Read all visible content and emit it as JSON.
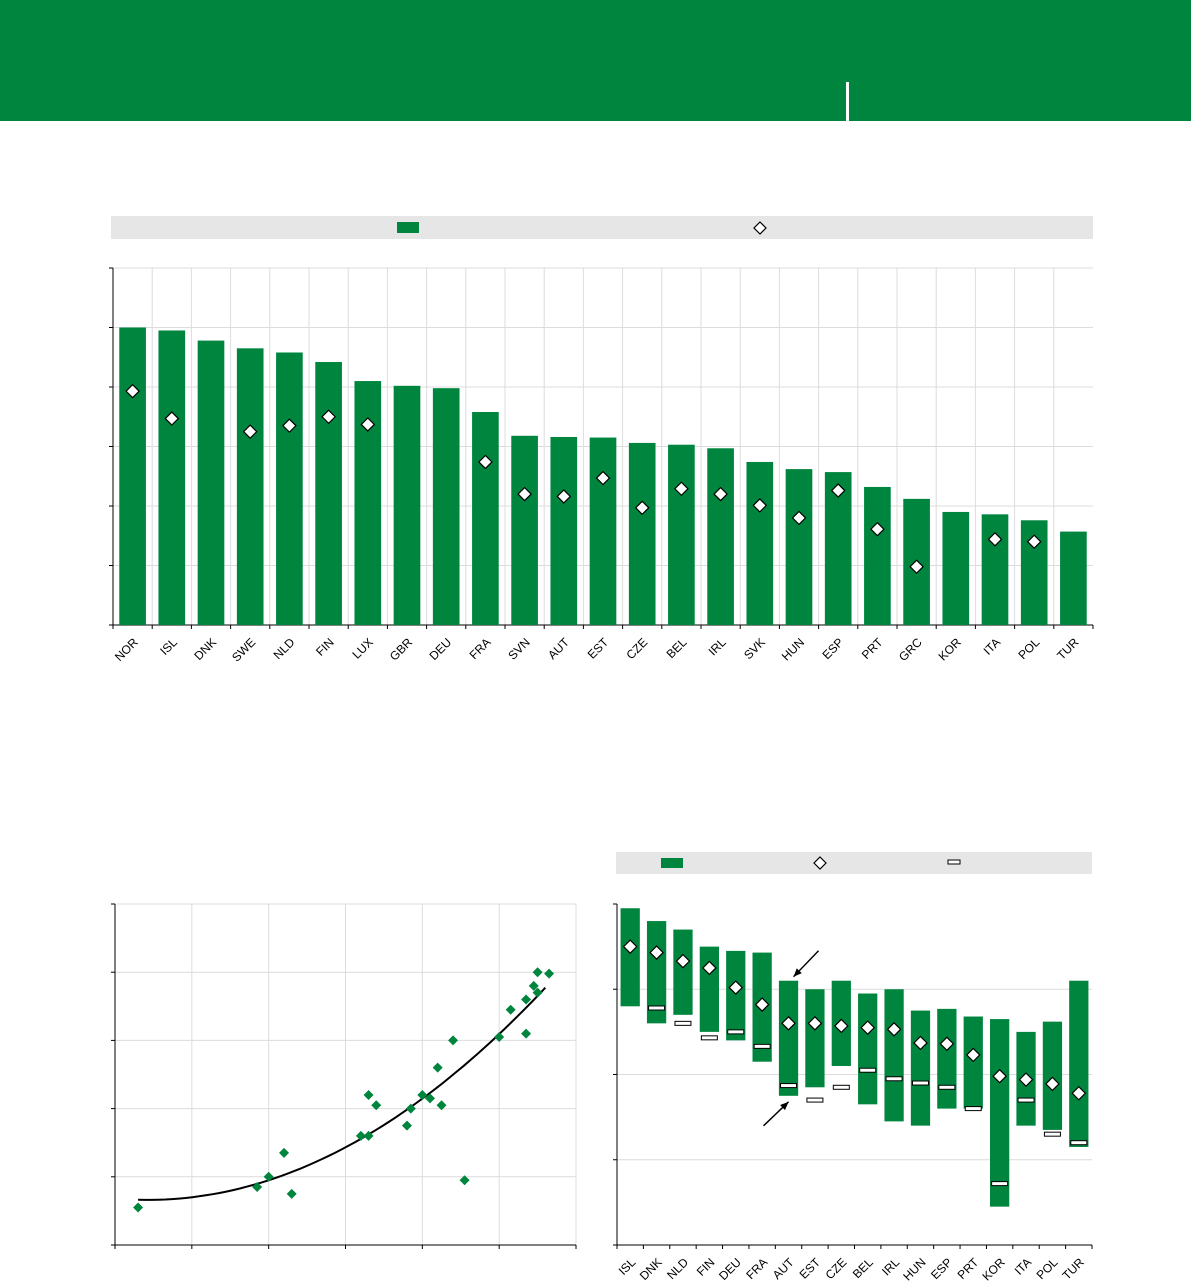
{
  "colors": {
    "brand": "#00853f",
    "bar": "#00853f",
    "grid": "#dcdcdc",
    "legend_bg": "#e6e6e6",
    "marker_edge": "#000000"
  },
  "header": {
    "title": "",
    "subtitle": ""
  },
  "chart_data": [
    {
      "type": "bar",
      "title": "",
      "xlabel": "",
      "ylabel": "",
      "ylim": [
        0,
        6
      ],
      "grid": true,
      "legend": {
        "placement": "top",
        "entries": [
          {
            "marker": "bar",
            "label": ""
          },
          {
            "marker": "diamond",
            "label": ""
          }
        ]
      },
      "categories": [
        "NOR",
        "ISL",
        "DNK",
        "SWE",
        "NLD",
        "FIN",
        "LUX",
        "GBR",
        "DEU",
        "FRA",
        "SVN",
        "AUT",
        "EST",
        "CZE",
        "BEL",
        "IRL",
        "SVK",
        "HUN",
        "ESP",
        "PRT",
        "GRC",
        "KOR",
        "ITA",
        "POL",
        "TUR"
      ],
      "series": [
        {
          "marker": "bar",
          "values": [
            5.0,
            4.95,
            4.78,
            4.65,
            4.58,
            4.42,
            4.1,
            4.02,
            3.98,
            3.58,
            3.18,
            3.16,
            3.15,
            3.06,
            3.03,
            2.97,
            2.74,
            2.62,
            2.57,
            2.32,
            2.12,
            1.9,
            1.86,
            1.76,
            1.57
          ]
        },
        {
          "marker": "diamond",
          "values": [
            3.93,
            3.47,
            null,
            3.25,
            3.35,
            3.5,
            3.37,
            null,
            null,
            2.74,
            2.2,
            2.16,
            2.47,
            1.97,
            2.29,
            2.2,
            2.01,
            1.8,
            2.26,
            1.61,
            0.98,
            null,
            1.44,
            1.4,
            null
          ]
        }
      ]
    },
    {
      "type": "scatter",
      "title": "",
      "xlabel": "",
      "ylabel": "",
      "xlim": [
        0,
        6
      ],
      "ylim": [
        0,
        5
      ],
      "grid": true,
      "points": [
        {
          "x": 0.3,
          "y": 0.55
        },
        {
          "x": 1.85,
          "y": 0.85
        },
        {
          "x": 2.0,
          "y": 1.0
        },
        {
          "x": 2.2,
          "y": 1.35
        },
        {
          "x": 2.3,
          "y": 0.75
        },
        {
          "x": 3.2,
          "y": 1.6
        },
        {
          "x": 3.3,
          "y": 1.6
        },
        {
          "x": 3.3,
          "y": 2.2
        },
        {
          "x": 3.4,
          "y": 2.05
        },
        {
          "x": 3.8,
          "y": 1.75
        },
        {
          "x": 3.85,
          "y": 2.0
        },
        {
          "x": 4.0,
          "y": 2.2
        },
        {
          "x": 4.1,
          "y": 2.15
        },
        {
          "x": 4.2,
          "y": 2.6
        },
        {
          "x": 4.25,
          "y": 2.05
        },
        {
          "x": 4.4,
          "y": 3.0
        },
        {
          "x": 4.55,
          "y": 0.95
        },
        {
          "x": 5.0,
          "y": 3.05
        },
        {
          "x": 5.15,
          "y": 3.45
        },
        {
          "x": 5.35,
          "y": 3.1
        },
        {
          "x": 5.35,
          "y": 3.6
        },
        {
          "x": 5.45,
          "y": 3.8
        },
        {
          "x": 5.5,
          "y": 3.7
        },
        {
          "x": 5.5,
          "y": 4.0
        },
        {
          "x": 5.65,
          "y": 3.98
        }
      ],
      "trend": {
        "kind": "quadratic",
        "x": [
          0.3,
          5.6
        ]
      }
    },
    {
      "type": "bar",
      "subtype": "range",
      "title": "",
      "xlabel": "",
      "ylabel": "",
      "ylim": [
        0,
        4
      ],
      "grid": true,
      "legend": {
        "placement": "top",
        "entries": [
          {
            "marker": "bar",
            "label": ""
          },
          {
            "marker": "diamond",
            "label": ""
          },
          {
            "marker": "dash",
            "label": ""
          }
        ]
      },
      "categories": [
        "ISL",
        "DNK",
        "NLD",
        "FIN",
        "DEU",
        "FRA",
        "AUT",
        "EST",
        "CZE",
        "BEL",
        "IRL",
        "HUN",
        "ESP",
        "PRT",
        "KOR",
        "ITA",
        "POL",
        "TUR"
      ],
      "series": [
        {
          "marker": "bar",
          "name_role": "high",
          "values": [
            3.95,
            3.8,
            3.7,
            3.5,
            3.45,
            3.43,
            3.1,
            3.0,
            3.1,
            2.95,
            3.0,
            2.75,
            2.77,
            2.68,
            2.65,
            2.5,
            2.62,
            3.1
          ]
        },
        {
          "marker": "bar",
          "name_role": "low",
          "values": [
            2.8,
            2.6,
            2.7,
            2.5,
            2.4,
            2.15,
            1.75,
            1.85,
            2.1,
            1.65,
            1.45,
            1.4,
            1.6,
            1.6,
            0.45,
            1.4,
            1.35,
            1.15
          ]
        },
        {
          "marker": "diamond",
          "values": [
            3.5,
            3.43,
            3.33,
            3.25,
            3.02,
            2.82,
            2.6,
            2.6,
            2.57,
            2.55,
            2.53,
            2.37,
            2.36,
            2.23,
            1.98,
            1.94,
            1.89,
            1.78
          ]
        },
        {
          "marker": "dash",
          "values": [
            null,
            2.78,
            2.6,
            2.43,
            2.5,
            2.33,
            1.87,
            1.7,
            1.85,
            2.05,
            1.95,
            1.9,
            1.85,
            1.6,
            0.72,
            1.7,
            1.3,
            1.2
          ]
        }
      ],
      "annotations": [
        {
          "kind": "arrow",
          "category": "AUT",
          "points_to": "high"
        },
        {
          "kind": "arrow",
          "category": "AUT",
          "points_to": "low"
        }
      ]
    }
  ]
}
